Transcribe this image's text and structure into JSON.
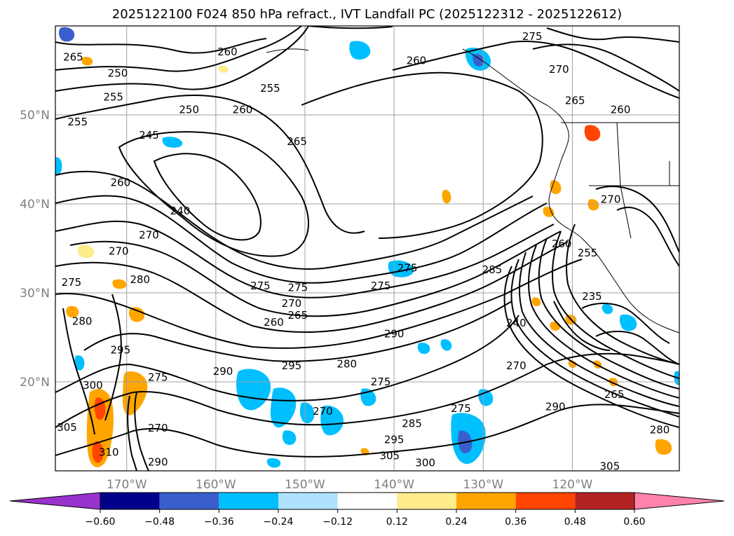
{
  "title": "2025122100 F024 850 hPa refract., IVT Landfall PC (2025122312 - 2025122612)",
  "map": {
    "lat_labels": [
      {
        "value": 50,
        "text": "50°N"
      },
      {
        "value": 40,
        "text": "40°N"
      },
      {
        "value": 30,
        "text": "30°N"
      },
      {
        "value": 20,
        "text": "20°N"
      }
    ],
    "lon_labels": [
      {
        "value": -170,
        "text": "170°W"
      },
      {
        "value": -160,
        "text": "160°W"
      },
      {
        "value": -150,
        "text": "150°W"
      },
      {
        "value": -140,
        "text": "140°W"
      },
      {
        "value": -130,
        "text": "130°W"
      },
      {
        "value": -120,
        "text": "120°W"
      }
    ],
    "lat_range": [
      10,
      60
    ],
    "lon_range": [
      -178,
      -108
    ],
    "grid": true,
    "contour_labels": [
      {
        "text": "265",
        "lon": -176,
        "lat": 56.5
      },
      {
        "text": "250",
        "lon": -171,
        "lat": 54.7
      },
      {
        "text": "255",
        "lon": -171.5,
        "lat": 52
      },
      {
        "text": "255",
        "lon": -175.5,
        "lat": 49.2
      },
      {
        "text": "250",
        "lon": -163,
        "lat": 50.6
      },
      {
        "text": "245",
        "lon": -167.5,
        "lat": 47.7
      },
      {
        "text": "260",
        "lon": -170.7,
        "lat": 42.4
      },
      {
        "text": "240",
        "lon": -164,
        "lat": 39.2
      },
      {
        "text": "270",
        "lon": -167.5,
        "lat": 36.5
      },
      {
        "text": "270",
        "lon": -170.9,
        "lat": 34.7
      },
      {
        "text": "275",
        "lon": -176.2,
        "lat": 31.2
      },
      {
        "text": "280",
        "lon": -168.5,
        "lat": 31.5
      },
      {
        "text": "280",
        "lon": -175,
        "lat": 26.8
      },
      {
        "text": "295",
        "lon": -170.7,
        "lat": 23.6
      },
      {
        "text": "300",
        "lon": -173.8,
        "lat": 19.6
      },
      {
        "text": "305",
        "lon": -176.7,
        "lat": 14.9
      },
      {
        "text": "310",
        "lon": -172,
        "lat": 12.1
      },
      {
        "text": "275",
        "lon": -166.5,
        "lat": 20.5
      },
      {
        "text": "270",
        "lon": -166.5,
        "lat": 14.8
      },
      {
        "text": "290",
        "lon": -166.5,
        "lat": 11
      },
      {
        "text": "260",
        "lon": -158.7,
        "lat": 57.1
      },
      {
        "text": "255",
        "lon": -153.9,
        "lat": 53
      },
      {
        "text": "260",
        "lon": -157,
        "lat": 50.6
      },
      {
        "text": "265",
        "lon": -150.9,
        "lat": 47
      },
      {
        "text": "275",
        "lon": -155,
        "lat": 30.8
      },
      {
        "text": "275",
        "lon": -150.8,
        "lat": 30.6
      },
      {
        "text": "270",
        "lon": -151.5,
        "lat": 28.8
      },
      {
        "text": "265",
        "lon": -150.8,
        "lat": 27.5
      },
      {
        "text": "260",
        "lon": -153.5,
        "lat": 26.7
      },
      {
        "text": "290",
        "lon": -159.2,
        "lat": 21.2
      },
      {
        "text": "295",
        "lon": -151.5,
        "lat": 21.8
      },
      {
        "text": "280",
        "lon": -145.3,
        "lat": 22
      },
      {
        "text": "270",
        "lon": -148,
        "lat": 16.7
      },
      {
        "text": "275",
        "lon": -141.5,
        "lat": 20
      },
      {
        "text": "290",
        "lon": -140,
        "lat": 25.4
      },
      {
        "text": "275",
        "lon": -138.5,
        "lat": 32.8
      },
      {
        "text": "275",
        "lon": -141.5,
        "lat": 30.8
      },
      {
        "text": "285",
        "lon": -138,
        "lat": 15.3
      },
      {
        "text": "295",
        "lon": -140,
        "lat": 13.5
      },
      {
        "text": "305",
        "lon": -140.5,
        "lat": 11.7
      },
      {
        "text": "300",
        "lon": -136.5,
        "lat": 10.9
      },
      {
        "text": "275",
        "lon": -132.5,
        "lat": 17
      },
      {
        "text": "260",
        "lon": -137.5,
        "lat": 56.1
      },
      {
        "text": "275",
        "lon": -124.5,
        "lat": 58.8
      },
      {
        "text": "270",
        "lon": -121.5,
        "lat": 55.1
      },
      {
        "text": "265",
        "lon": -119.7,
        "lat": 51.6
      },
      {
        "text": "260",
        "lon": -114.6,
        "lat": 50.6
      },
      {
        "text": "285",
        "lon": -129,
        "lat": 32.6
      },
      {
        "text": "260",
        "lon": -121.2,
        "lat": 35.5
      },
      {
        "text": "255",
        "lon": -118.3,
        "lat": 34.5
      },
      {
        "text": "270",
        "lon": -115.7,
        "lat": 40.5
      },
      {
        "text": "235",
        "lon": -117.8,
        "lat": 29.6
      },
      {
        "text": "240",
        "lon": -126.3,
        "lat": 26.6
      },
      {
        "text": "270",
        "lon": -126.3,
        "lat": 21.8
      },
      {
        "text": "290",
        "lon": -121.9,
        "lat": 17.2
      },
      {
        "text": "265",
        "lon": -115.3,
        "lat": 18.6
      },
      {
        "text": "305",
        "lon": -115.8,
        "lat": 10.5
      },
      {
        "text": "280",
        "lon": -110.2,
        "lat": 14.6
      }
    ]
  },
  "colorbar": {
    "ticks": [
      "−0.60",
      "−0.48",
      "−0.36",
      "−0.24",
      "−0.12",
      "0.12",
      "0.24",
      "0.36",
      "0.48",
      "0.60"
    ],
    "colors": {
      "under": "#9932cc",
      "bins": [
        "#00008b",
        "#3a5fcd",
        "#00bfff",
        "#b0e2ff",
        "#ffffff",
        "#ffec8b",
        "#ffa500",
        "#ff4500",
        "#b22222"
      ],
      "over": "#ff82ab"
    }
  }
}
